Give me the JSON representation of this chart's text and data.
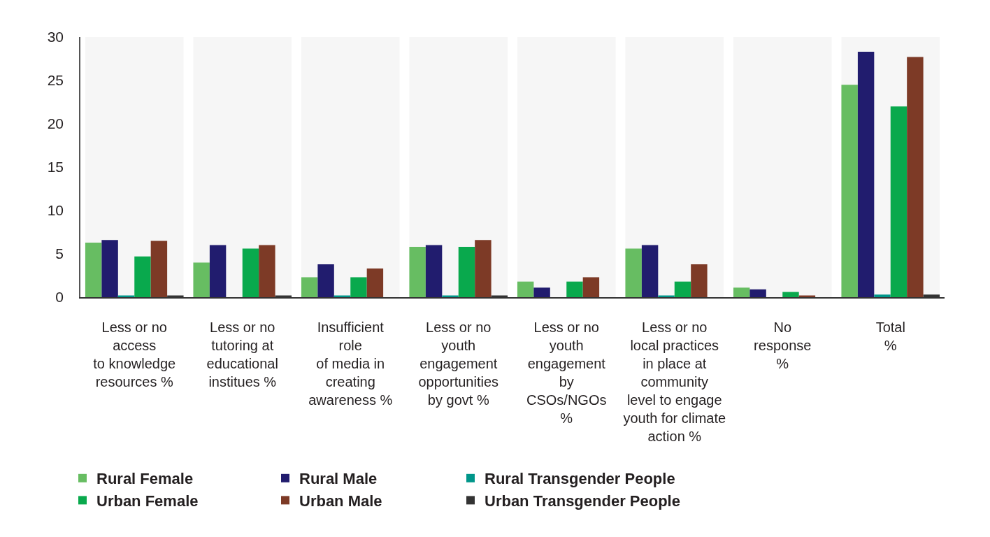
{
  "chart_data": {
    "type": "bar",
    "categories": [
      "Less or no\naccess\nto knowledge\nresources %",
      "Less or no\ntutoring at\neducational\ninstitues %",
      "Insufficient\nrole\nof media in\ncreating\nawareness %",
      "Less or no\nyouth\nengagement\nopportunities\nby govt %",
      "Less or no\nyouth\nengagement\nby\nCSOs/NGOs\n%",
      "Less or no\nlocal practices\nin place at\ncommunity\nlevel to engage\nyouth for climate\naction %",
      "No\nresponse\n%",
      "Total\n%"
    ],
    "series": [
      {
        "name": "Rural Female",
        "color": "#67bd62",
        "values": [
          6.3,
          4.0,
          2.3,
          5.8,
          1.8,
          5.6,
          1.1,
          24.5
        ]
      },
      {
        "name": "Rural Male",
        "color": "#211c6e",
        "values": [
          6.6,
          6.0,
          3.8,
          6.0,
          1.1,
          6.0,
          0.9,
          28.3
        ]
      },
      {
        "name": "Rural Transgender People",
        "color": "#00968a",
        "values": [
          0.2,
          0,
          0.2,
          0.2,
          0,
          0.2,
          0,
          0.3
        ]
      },
      {
        "name": "Urban Female",
        "color": "#09a94d",
        "values": [
          4.7,
          5.6,
          2.3,
          5.8,
          1.8,
          1.8,
          0.6,
          22.0
        ]
      },
      {
        "name": "Urban Male",
        "color": "#7d3a26",
        "values": [
          6.5,
          6.0,
          3.3,
          6.6,
          2.3,
          3.8,
          0.2,
          27.7
        ]
      },
      {
        "name": "Urban Transgender People",
        "color": "#333333",
        "values": [
          0.2,
          0.2,
          0,
          0.2,
          0,
          0,
          0,
          0.3
        ]
      }
    ],
    "ylim": [
      0,
      30
    ],
    "yticks": [
      0,
      5,
      10,
      15,
      20,
      25,
      30
    ],
    "legend": "bottom",
    "bands": [
      {
        "axis": "x",
        "from": "Less or no\naccess\nto knowledge\nresources %",
        "to": "Less or no\naccess\nto knowledge\nresources %",
        "color": "#f6f6f6"
      },
      {
        "axis": "x",
        "from": "Less or no\ntutoring at\neducational\ninstitues %",
        "to": "Less or no\ntutoring at\neducational\ninstitues %",
        "color": "#f6f6f6"
      },
      {
        "axis": "x",
        "from": "Insufficient\nrole\nof media in\ncreating\nawareness %",
        "to": "Insufficient\nrole\nof media in\ncreating\nawareness %",
        "color": "#f6f6f6"
      },
      {
        "axis": "x",
        "from": "Less or no\nyouth\nengagement\nopportunities\nby govt %",
        "to": "Less or no\nyouth\nengagement\nopportunities\nby govt %",
        "color": "#f6f6f6"
      },
      {
        "axis": "x",
        "from": "Less or no\nyouth\nengagement\nby\nCSOs/NGOs\n%",
        "to": "Less or no\nyouth\nengagement\nby\nCSOs/NGOs\n%",
        "color": "#f6f6f6"
      },
      {
        "axis": "x",
        "from": "Less or no\nlocal practices\nin place at\ncommunity\nlevel to engage\nyouth for climate\naction %",
        "to": "Less or no\nlocal practices\nin place at\ncommunity\nlevel to engage\nyouth for climate\naction %",
        "color": "#f6f6f6"
      },
      {
        "axis": "x",
        "from": "No\nresponse\n%",
        "to": "No\nresponse\n%",
        "color": "#f6f6f6"
      },
      {
        "axis": "x",
        "from": "Total\n%",
        "to": "Total\n%",
        "color": "#f6f6f6"
      }
    ]
  }
}
